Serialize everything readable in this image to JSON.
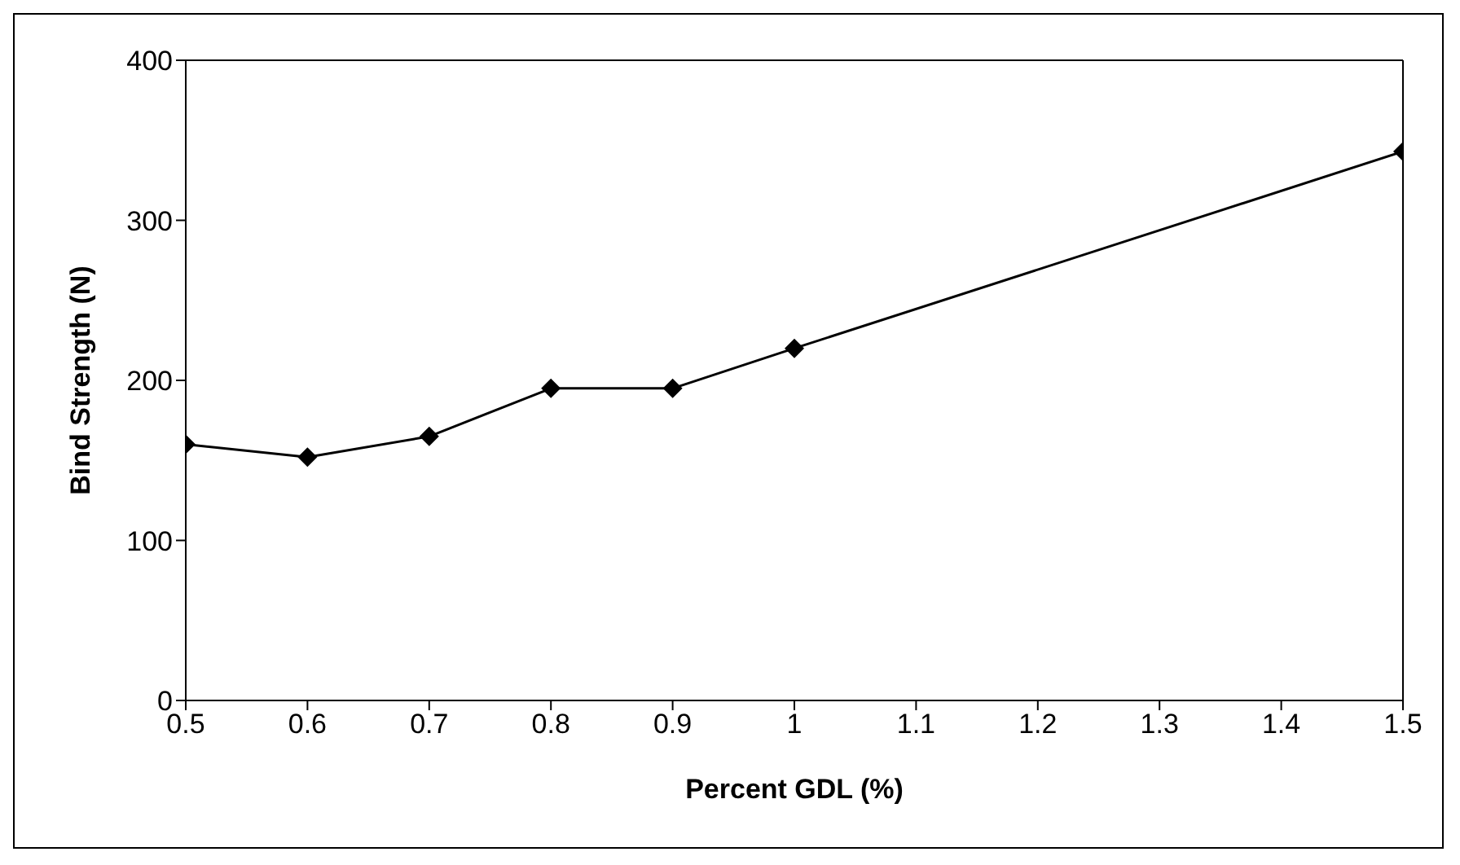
{
  "chart_data": {
    "type": "line",
    "xlabel": "Percent GDL (%)",
    "ylabel": "Bind Strength (N)",
    "x": [
      0.5,
      0.6,
      0.7,
      0.8,
      0.9,
      1,
      1.5
    ],
    "series": [
      {
        "color": "#000000",
        "values": [
          160,
          152,
          165,
          195,
          195,
          220,
          343
        ]
      }
    ],
    "xlim": [
      0.5,
      1.5
    ],
    "xticks": [
      0.5,
      0.6,
      0.7,
      0.8,
      0.9,
      1,
      1.1,
      1.2,
      1.3,
      1.4,
      1.5
    ],
    "ylim": [
      0,
      400
    ],
    "yticks": [
      0,
      100,
      200,
      300,
      400
    ],
    "grid": false,
    "legend": false,
    "marker": "diamond",
    "line_style": "solid"
  }
}
